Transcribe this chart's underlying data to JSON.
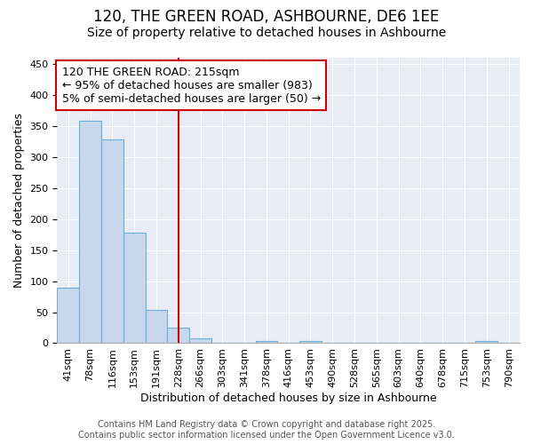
{
  "title1": "120, THE GREEN ROAD, ASHBOURNE, DE6 1EE",
  "title2": "Size of property relative to detached houses in Ashbourne",
  "xlabel": "Distribution of detached houses by size in Ashbourne",
  "ylabel": "Number of detached properties",
  "categories": [
    "41sqm",
    "78sqm",
    "116sqm",
    "153sqm",
    "191sqm",
    "228sqm",
    "266sqm",
    "303sqm",
    "341sqm",
    "378sqm",
    "416sqm",
    "453sqm",
    "490sqm",
    "528sqm",
    "565sqm",
    "603sqm",
    "640sqm",
    "678sqm",
    "715sqm",
    "753sqm",
    "790sqm"
  ],
  "values": [
    90,
    358,
    328,
    178,
    53,
    25,
    8,
    0,
    0,
    3,
    0,
    4,
    0,
    0,
    0,
    0,
    0,
    0,
    0,
    3,
    0
  ],
  "bar_color": "#c8d8ec",
  "bar_edge_color": "#6baed6",
  "ylim": [
    0,
    460
  ],
  "yticks": [
    0,
    50,
    100,
    150,
    200,
    250,
    300,
    350,
    400,
    450
  ],
  "vline_index": 5,
  "vline_color": "#cc0000",
  "annotation_title": "120 THE GREEN ROAD: 215sqm",
  "annotation_line1": "← 95% of detached houses are smaller (983)",
  "annotation_line2": "5% of semi-detached houses are larger (50) →",
  "annotation_box_color": "#cc0000",
  "annotation_bg": "#ffffff",
  "footer1": "Contains HM Land Registry data © Crown copyright and database right 2025.",
  "footer2": "Contains public sector information licensed under the Open Government Licence v3.0.",
  "fig_bg_color": "#ffffff",
  "plot_bg": "#e8edf5",
  "title_fontsize": 12,
  "subtitle_fontsize": 10,
  "axis_fontsize": 9,
  "tick_fontsize": 8,
  "annotation_fontsize": 9,
  "footer_fontsize": 7
}
